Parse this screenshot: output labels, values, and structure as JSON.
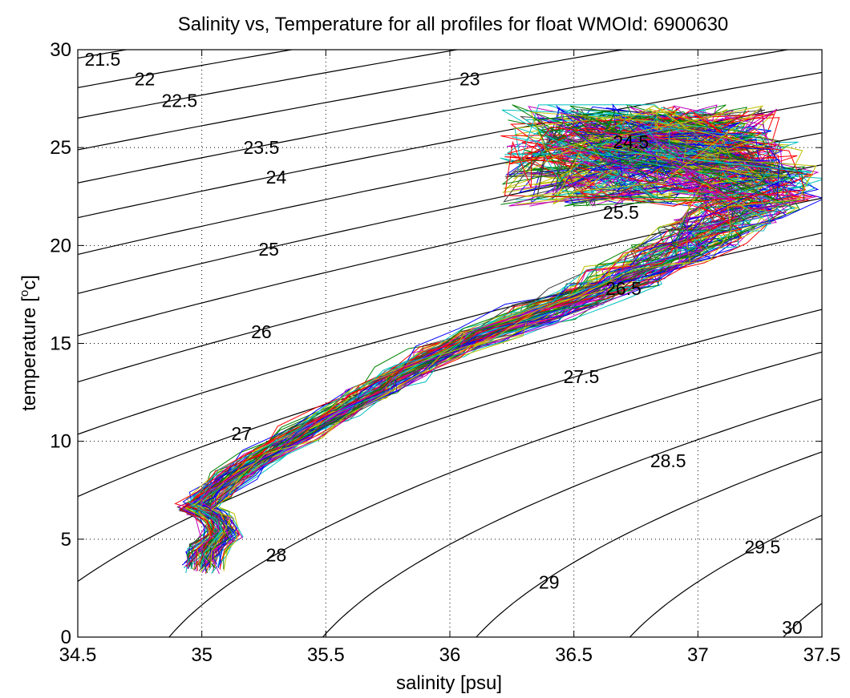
{
  "chart_data": {
    "type": "line",
    "title": "Salinity vs, Temperature for all profiles for float WMOId: 6900630",
    "xlabel": "salinity [psu]",
    "ylabel": "temperature [",
    "ylabel_sup": "o",
    "ylabel_tail": "c]",
    "xlim": [
      34.5,
      37.5
    ],
    "ylim": [
      0,
      30
    ],
    "x_ticks": [
      "34.5",
      "35",
      "35.5",
      "36",
      "36.5",
      "37",
      "37.5"
    ],
    "y_ticks": [
      "0",
      "5",
      "10",
      "15",
      "20",
      "25",
      "30"
    ],
    "grid": true,
    "density_contours": [
      {
        "sigma": 21.5,
        "label": "21.5",
        "label_at": [
          34.6,
          29.5
        ]
      },
      {
        "sigma": 22,
        "label": "22",
        "label_at": [
          34.77,
          28.5
        ]
      },
      {
        "sigma": 22.5,
        "label": "22.5",
        "label_at": [
          34.91,
          27.4
        ]
      },
      {
        "sigma": 23,
        "label": "23",
        "label_at": [
          36.08,
          28.5
        ]
      },
      {
        "sigma": 23.5,
        "label": "23.5",
        "label_at": [
          35.24,
          25.0
        ]
      },
      {
        "sigma": 24,
        "label": "24",
        "label_at": [
          35.3,
          23.5
        ]
      },
      {
        "sigma": 24.5,
        "label": "24.5",
        "label_at": [
          36.73,
          25.3
        ]
      },
      {
        "sigma": 25,
        "label": "25",
        "label_at": [
          35.27,
          19.8
        ]
      },
      {
        "sigma": 25.5,
        "label": "25.5",
        "label_at": [
          36.69,
          21.7
        ]
      },
      {
        "sigma": 26,
        "label": "26",
        "label_at": [
          35.24,
          15.6
        ]
      },
      {
        "sigma": 26.5,
        "label": "26.5",
        "label_at": [
          36.7,
          17.8
        ]
      },
      {
        "sigma": 27,
        "label": "27",
        "label_at": [
          35.16,
          10.4
        ]
      },
      {
        "sigma": 27.5,
        "label": "27.5",
        "label_at": [
          36.53,
          13.3
        ]
      },
      {
        "sigma": 28,
        "label": "28",
        "label_at": [
          35.3,
          4.2
        ]
      },
      {
        "sigma": 28.5,
        "label": "28.5",
        "label_at": [
          36.88,
          9.0
        ]
      },
      {
        "sigma": 29,
        "label": "29",
        "label_at": [
          36.4,
          2.8
        ]
      },
      {
        "sigma": 29.5,
        "label": "29.5",
        "label_at": [
          37.26,
          4.6
        ]
      },
      {
        "sigma": 30,
        "label": "30",
        "label_at": [
          37.38,
          0.5
        ]
      }
    ],
    "profile_envelope": {
      "count": 90,
      "spine": [
        [
          35.0,
          3.6
        ],
        [
          35.02,
          4.5
        ],
        [
          35.08,
          5.3
        ],
        [
          35.05,
          6.2
        ],
        [
          34.98,
          6.6
        ],
        [
          35.03,
          7.2
        ],
        [
          35.13,
          8.3
        ],
        [
          35.25,
          9.3
        ],
        [
          35.4,
          10.4
        ],
        [
          35.55,
          11.5
        ],
        [
          35.68,
          12.5
        ],
        [
          35.8,
          13.5
        ],
        [
          35.95,
          14.5
        ],
        [
          36.15,
          15.5
        ],
        [
          36.35,
          16.5
        ],
        [
          36.55,
          17.5
        ],
        [
          36.72,
          18.5
        ],
        [
          36.88,
          19.5
        ],
        [
          37.02,
          20.5
        ],
        [
          37.15,
          21.6
        ],
        [
          37.22,
          22.6
        ],
        [
          37.2,
          23.6
        ],
        [
          37.1,
          24.6
        ],
        [
          36.95,
          25.4
        ],
        [
          36.82,
          26.0
        ]
      ],
      "colors": [
        "#0000ff",
        "#008000",
        "#ff0000",
        "#00bfbf",
        "#bf00bf",
        "#bfbf00",
        "#404040"
      ]
    }
  }
}
